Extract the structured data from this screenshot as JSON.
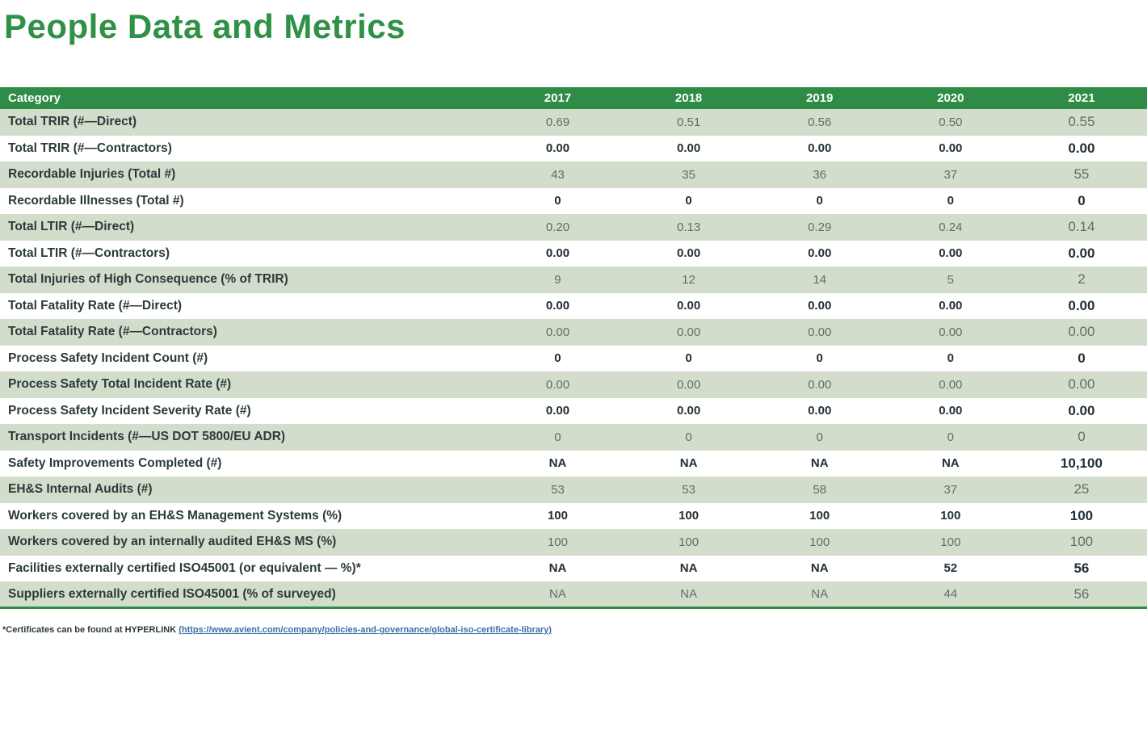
{
  "page": {
    "title": "People Data and Metrics"
  },
  "table": {
    "header": {
      "category": "Category",
      "years": [
        "2017",
        "2018",
        "2019",
        "2020",
        "2021"
      ]
    },
    "rows": [
      {
        "label": "Total TRIR (#—Direct)",
        "values": [
          "0.69",
          "0.51",
          "0.56",
          "0.50",
          "0.55"
        ]
      },
      {
        "label": "Total TRIR (#—Contractors)",
        "values": [
          "0.00",
          "0.00",
          "0.00",
          "0.00",
          "0.00"
        ]
      },
      {
        "label": "Recordable Injuries (Total #)",
        "values": [
          "43",
          "35",
          "36",
          "37",
          "55"
        ]
      },
      {
        "label": "Recordable Illnesses (Total #)",
        "values": [
          "0",
          "0",
          "0",
          "0",
          "0"
        ]
      },
      {
        "label": "Total LTIR (#—Direct)",
        "values": [
          "0.20",
          "0.13",
          "0.29",
          "0.24",
          "0.14"
        ]
      },
      {
        "label": "Total LTIR (#—Contractors)",
        "values": [
          "0.00",
          "0.00",
          "0.00",
          "0.00",
          "0.00"
        ]
      },
      {
        "label": "Total Injuries of High Consequence (% of TRIR)",
        "values": [
          "9",
          "12",
          "14",
          "5",
          "2"
        ]
      },
      {
        "label": "Total Fatality Rate (#—Direct)",
        "values": [
          "0.00",
          "0.00",
          "0.00",
          "0.00",
          "0.00"
        ]
      },
      {
        "label": "Total Fatality Rate (#—Contractors)",
        "values": [
          "0.00",
          "0.00",
          "0.00",
          "0.00",
          "0.00"
        ]
      },
      {
        "label": "Process Safety Incident Count (#)",
        "values": [
          "0",
          "0",
          "0",
          "0",
          "0"
        ]
      },
      {
        "label": "Process Safety Total Incident Rate (#)",
        "values": [
          "0.00",
          "0.00",
          "0.00",
          "0.00",
          "0.00"
        ]
      },
      {
        "label": "Process Safety Incident Severity Rate (#)",
        "values": [
          "0.00",
          "0.00",
          "0.00",
          "0.00",
          "0.00"
        ]
      },
      {
        "label": "Transport Incidents (#—US DOT 5800/EU ADR)",
        "values": [
          "0",
          "0",
          "0",
          "0",
          "0"
        ]
      },
      {
        "label": "Safety Improvements Completed (#)",
        "values": [
          "NA",
          "NA",
          "NA",
          "NA",
          "10,100"
        ]
      },
      {
        "label": "EH&S Internal Audits (#)",
        "values": [
          "53",
          "53",
          "58",
          "37",
          "25"
        ]
      },
      {
        "label": "Workers covered by an EH&S Management Systems (%)",
        "values": [
          "100",
          "100",
          "100",
          "100",
          "100"
        ]
      },
      {
        "label": "Workers covered by an internally audited EH&S MS (%)",
        "values": [
          "100",
          "100",
          "100",
          "100",
          "100"
        ]
      },
      {
        "label": "Facilities externally certified ISO45001 (or equivalent — %)*",
        "values": [
          "NA",
          "NA",
          "NA",
          "52",
          "56"
        ]
      },
      {
        "label": "Suppliers externally certified ISO45001 (% of surveyed)",
        "values": [
          "NA",
          "NA",
          "NA",
          "44",
          "56"
        ]
      }
    ]
  },
  "footnote": {
    "prefix": "*Certificates can be found at HYPERLINK ",
    "link_text": "(https://www.avient.com/company/policies-and-governance/global-iso-certificate-library)"
  },
  "colors": {
    "accent_green": "#2E8C47",
    "title_green": "#2E9145",
    "row_shade_green": "#D3DDCB",
    "label_dark": "#2C3A3A",
    "shaded_value_gray": "#5E6E66",
    "plain_value_dark": "#232F36",
    "link_blue": "#3A6EA8"
  }
}
